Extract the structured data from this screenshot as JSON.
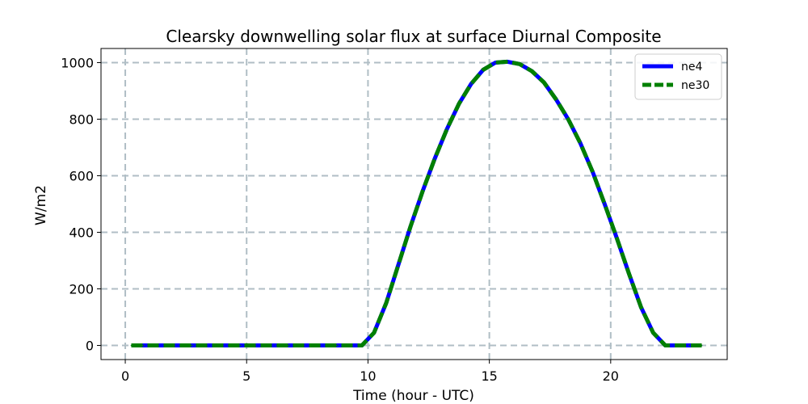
{
  "chart_data": {
    "type": "line",
    "title": "Clearsky downwelling solar flux at surface Diurnal Composite",
    "xlabel": "Time (hour - UTC)",
    "ylabel": "W/m2",
    "xlim": [
      -1,
      24.8
    ],
    "ylim": [
      -50,
      1050
    ],
    "xticks": [
      0,
      5,
      10,
      15,
      20
    ],
    "yticks": [
      0,
      200,
      400,
      600,
      800,
      1000
    ],
    "grid": true,
    "legend_position": "top-right",
    "x": [
      0.25,
      0.75,
      1.25,
      1.75,
      2.25,
      2.75,
      3.25,
      3.75,
      4.25,
      4.75,
      5.25,
      5.75,
      6.25,
      6.75,
      7.25,
      7.75,
      8.25,
      8.75,
      9.25,
      9.75,
      10.25,
      10.75,
      11.25,
      11.75,
      12.25,
      12.75,
      13.25,
      13.75,
      14.25,
      14.75,
      15.25,
      15.75,
      16.25,
      16.75,
      17.25,
      17.75,
      18.25,
      18.75,
      19.25,
      19.75,
      20.25,
      20.75,
      21.25,
      21.75,
      22.25,
      22.75,
      23.25,
      23.75
    ],
    "series": [
      {
        "name": "ne4",
        "color": "#0000ff",
        "style": "solid",
        "values": [
          0,
          0,
          0,
          0,
          0,
          0,
          0,
          0,
          0,
          0,
          0,
          0,
          0,
          0,
          0,
          0,
          0,
          0,
          0,
          0,
          45,
          150,
          285,
          420,
          545,
          660,
          765,
          855,
          925,
          975,
          1000,
          1003,
          995,
          970,
          930,
          870,
          800,
          715,
          615,
          500,
          380,
          255,
          135,
          45,
          0,
          0,
          0,
          0
        ]
      },
      {
        "name": "ne30",
        "color": "#008000",
        "style": "dashed",
        "values": [
          0,
          0,
          0,
          0,
          0,
          0,
          0,
          0,
          0,
          0,
          0,
          0,
          0,
          0,
          0,
          0,
          0,
          0,
          0,
          0,
          45,
          150,
          285,
          420,
          545,
          660,
          765,
          855,
          925,
          975,
          1000,
          1003,
          995,
          970,
          930,
          870,
          800,
          715,
          615,
          500,
          380,
          255,
          135,
          45,
          0,
          0,
          0,
          0
        ]
      }
    ]
  }
}
